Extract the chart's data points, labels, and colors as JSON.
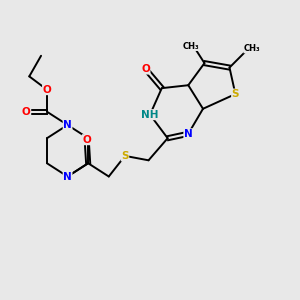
{
  "bg_color": "#e8e8e8",
  "bond_color": "#000000",
  "atom_colors": {
    "N": "#0000ff",
    "O": "#ff0000",
    "S": "#ccaa00",
    "NH": "#008888",
    "C": "#000000"
  },
  "font_size": 7.5,
  "linewidth": 1.4
}
